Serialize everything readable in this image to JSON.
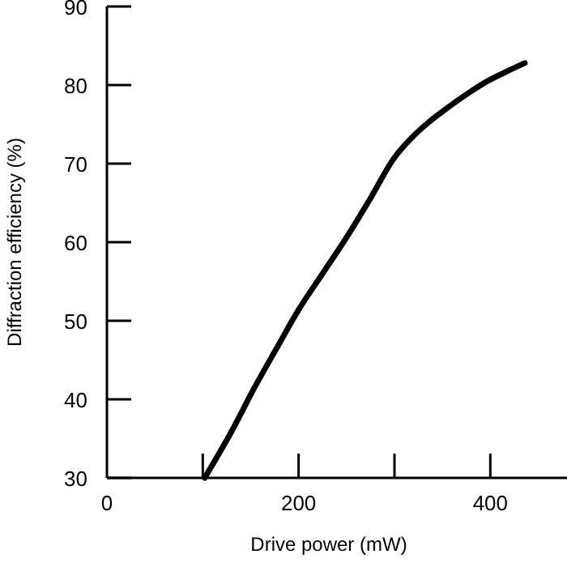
{
  "chart_data": {
    "type": "line",
    "xlabel": "Drive power (mW)",
    "ylabel": "Diffraction efficiency (%)",
    "x": [
      102,
      130,
      154,
      178,
      200,
      225,
      250,
      275,
      299,
      318,
      335,
      352,
      375,
      397,
      415,
      436
    ],
    "series": [
      {
        "color": "#000000",
        "values": [
          30,
          35.9,
          41.5,
          46.7,
          51.4,
          56,
          60.6,
          65.6,
          70.6,
          73.3,
          75.2,
          76.8,
          78.8,
          80.5,
          81.6,
          82.8
        ]
      }
    ],
    "xlim": [
      0,
      480
    ],
    "ylim": [
      30,
      90
    ],
    "xticks": [
      0,
      {
        "value": 100,
        "label": null
      },
      200,
      {
        "value": 300,
        "label": null
      },
      400
    ],
    "yticks": [
      30,
      40,
      50,
      60,
      70,
      80,
      90
    ],
    "marker": "none",
    "line_style": "solid",
    "grid": false
  }
}
